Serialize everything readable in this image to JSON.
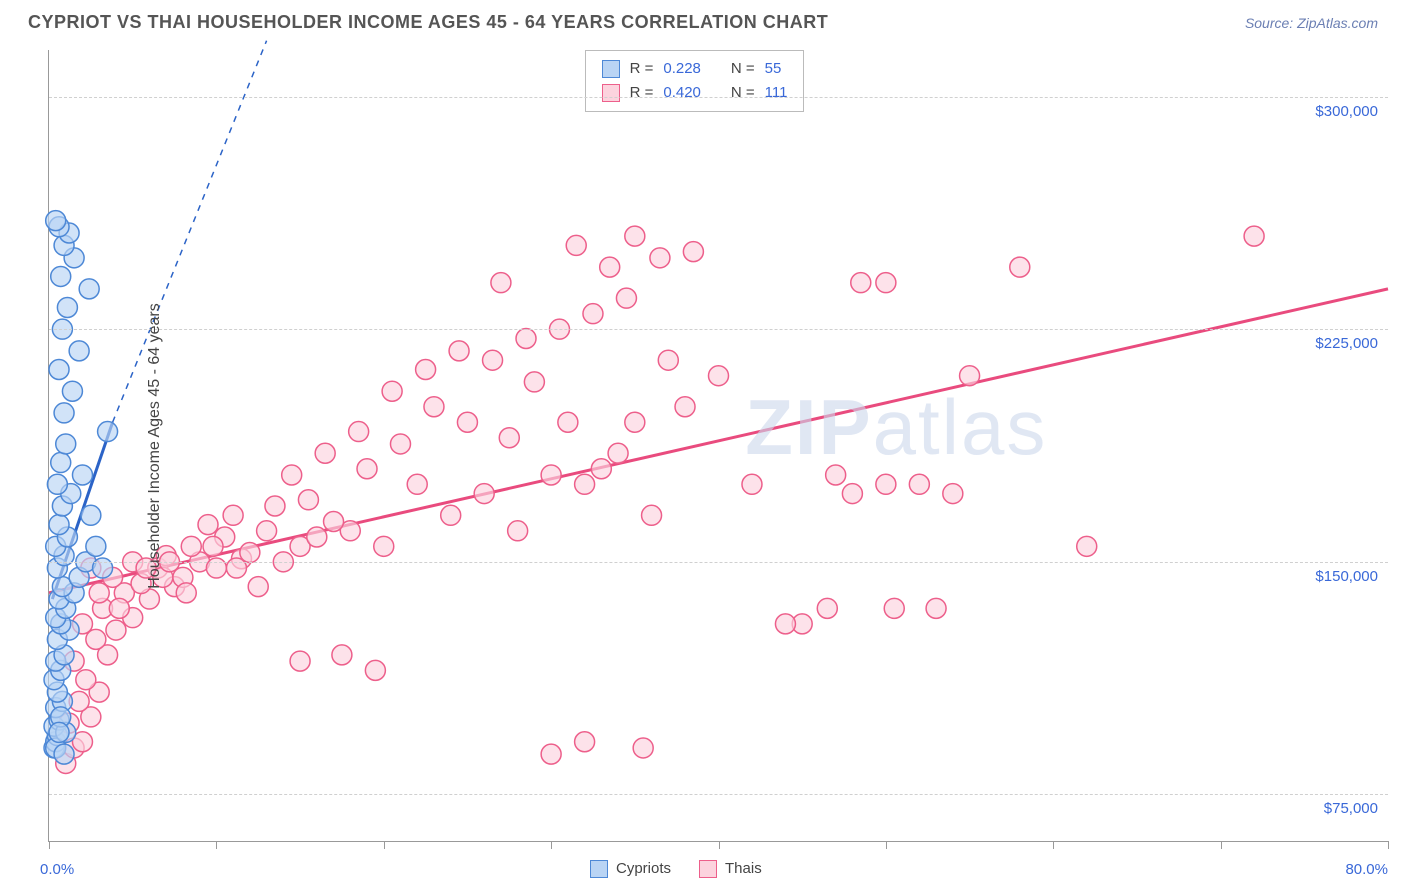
{
  "title": "CYPRIOT VS THAI HOUSEHOLDER INCOME AGES 45 - 64 YEARS CORRELATION CHART",
  "source": "Source: ZipAtlas.com",
  "ylabel": "Householder Income Ages 45 - 64 years",
  "watermark_a": "ZIP",
  "watermark_b": "atlas",
  "xaxis": {
    "min": 0,
    "max": 80,
    "label_min": "0.0%",
    "label_max": "80.0%",
    "tick_count": 9
  },
  "yaxis": {
    "min": 60000,
    "max": 315000,
    "ticks": [
      {
        "v": 75000,
        "label": "$75,000"
      },
      {
        "v": 150000,
        "label": "$150,000"
      },
      {
        "v": 225000,
        "label": "$225,000"
      },
      {
        "v": 300000,
        "label": "$300,000"
      }
    ]
  },
  "series": [
    {
      "id": "cypriots",
      "name": "Cypriots",
      "fill": "#b9d4f4",
      "stroke": "#4d88d6",
      "line_color": "#2b63c7",
      "r_label": "R =",
      "r_value": "0.228",
      "n_label": "N =",
      "n_value": "55",
      "trend": {
        "x1": 0.2,
        "y1": 138000,
        "x2": 3.8,
        "y2": 195000,
        "dash_to_x": 13,
        "dash_to_y": 318000
      },
      "points": [
        [
          0.3,
          90000
        ],
        [
          0.4,
          92000
        ],
        [
          0.5,
          94000
        ],
        [
          0.3,
          97000
        ],
        [
          0.6,
          99000
        ],
        [
          0.4,
          103000
        ],
        [
          0.8,
          105000
        ],
        [
          0.5,
          108000
        ],
        [
          0.3,
          112000
        ],
        [
          0.7,
          115000
        ],
        [
          0.4,
          118000
        ],
        [
          0.9,
          120000
        ],
        [
          0.5,
          125000
        ],
        [
          1.2,
          128000
        ],
        [
          0.7,
          130000
        ],
        [
          0.4,
          132000
        ],
        [
          1.0,
          135000
        ],
        [
          0.6,
          138000
        ],
        [
          1.5,
          140000
        ],
        [
          0.8,
          142000
        ],
        [
          1.8,
          145000
        ],
        [
          0.5,
          148000
        ],
        [
          2.2,
          150000
        ],
        [
          0.9,
          152000
        ],
        [
          0.4,
          155000
        ],
        [
          1.1,
          158000
        ],
        [
          0.6,
          162000
        ],
        [
          2.5,
          165000
        ],
        [
          0.8,
          168000
        ],
        [
          1.3,
          172000
        ],
        [
          0.5,
          175000
        ],
        [
          2.0,
          178000
        ],
        [
          0.7,
          182000
        ],
        [
          1.0,
          188000
        ],
        [
          3.5,
          192000
        ],
        [
          0.9,
          198000
        ],
        [
          1.4,
          205000
        ],
        [
          0.6,
          212000
        ],
        [
          1.8,
          218000
        ],
        [
          0.8,
          225000
        ],
        [
          1.1,
          232000
        ],
        [
          2.4,
          238000
        ],
        [
          0.7,
          242000
        ],
        [
          1.5,
          248000
        ],
        [
          0.9,
          252000
        ],
        [
          1.2,
          256000
        ],
        [
          0.6,
          258000
        ],
        [
          0.4,
          90000
        ],
        [
          1.0,
          95000
        ],
        [
          0.7,
          100000
        ],
        [
          2.8,
          155000
        ],
        [
          3.2,
          148000
        ],
        [
          0.6,
          95000
        ],
        [
          0.9,
          88000
        ],
        [
          0.4,
          260000
        ]
      ]
    },
    {
      "id": "thais",
      "name": "Thais",
      "fill": "#fcd3de",
      "stroke": "#ed5f8b",
      "line_color": "#e94b7e",
      "r_label": "R =",
      "r_value": "0.420",
      "n_label": "N =",
      "n_value": "111",
      "trend": {
        "x1": 0,
        "y1": 140000,
        "x2": 80,
        "y2": 238000
      },
      "points": [
        [
          1.0,
          85000
        ],
        [
          1.5,
          90000
        ],
        [
          2.0,
          92000
        ],
        [
          1.2,
          98000
        ],
        [
          2.5,
          100000
        ],
        [
          1.8,
          105000
        ],
        [
          3.0,
          108000
        ],
        [
          2.2,
          112000
        ],
        [
          1.5,
          118000
        ],
        [
          3.5,
          120000
        ],
        [
          2.8,
          125000
        ],
        [
          4.0,
          128000
        ],
        [
          2.0,
          130000
        ],
        [
          5.0,
          132000
        ],
        [
          3.2,
          135000
        ],
        [
          6.0,
          138000
        ],
        [
          4.5,
          140000
        ],
        [
          7.5,
          142000
        ],
        [
          5.5,
          143000
        ],
        [
          3.8,
          145000
        ],
        [
          8.0,
          145000
        ],
        [
          6.5,
          148000
        ],
        [
          9.0,
          150000
        ],
        [
          5.0,
          150000
        ],
        [
          10.0,
          148000
        ],
        [
          7.0,
          152000
        ],
        [
          11.5,
          151000
        ],
        [
          8.5,
          155000
        ],
        [
          12.0,
          153000
        ],
        [
          14.0,
          150000
        ],
        [
          10.5,
          158000
        ],
        [
          13.0,
          160000
        ],
        [
          15.0,
          155000
        ],
        [
          9.5,
          162000
        ],
        [
          16.0,
          158000
        ],
        [
          11.0,
          165000
        ],
        [
          18.0,
          160000
        ],
        [
          13.5,
          168000
        ],
        [
          20.0,
          155000
        ],
        [
          15.5,
          170000
        ],
        [
          17.0,
          163000
        ],
        [
          22.0,
          175000
        ],
        [
          14.5,
          178000
        ],
        [
          24.0,
          165000
        ],
        [
          19.0,
          180000
        ],
        [
          26.0,
          172000
        ],
        [
          16.5,
          185000
        ],
        [
          28.0,
          160000
        ],
        [
          21.0,
          188000
        ],
        [
          30.0,
          178000
        ],
        [
          18.5,
          192000
        ],
        [
          25.0,
          195000
        ],
        [
          32.0,
          175000
        ],
        [
          23.0,
          200000
        ],
        [
          27.5,
          190000
        ],
        [
          34.0,
          185000
        ],
        [
          20.5,
          205000
        ],
        [
          36.0,
          165000
        ],
        [
          29.0,
          208000
        ],
        [
          22.5,
          212000
        ],
        [
          31.0,
          195000
        ],
        [
          38.0,
          200000
        ],
        [
          26.5,
          215000
        ],
        [
          33.0,
          180000
        ],
        [
          24.5,
          218000
        ],
        [
          40.0,
          210000
        ],
        [
          28.5,
          222000
        ],
        [
          35.0,
          195000
        ],
        [
          42.0,
          175000
        ],
        [
          30.5,
          225000
        ],
        [
          37.0,
          215000
        ],
        [
          45.0,
          130000
        ],
        [
          32.5,
          230000
        ],
        [
          34.5,
          235000
        ],
        [
          48.0,
          172000
        ],
        [
          27.0,
          240000
        ],
        [
          50.0,
          240000
        ],
        [
          33.5,
          245000
        ],
        [
          52.0,
          175000
        ],
        [
          31.5,
          252000
        ],
        [
          55.0,
          210000
        ],
        [
          36.5,
          248000
        ],
        [
          30.0,
          88000
        ],
        [
          44.0,
          130000
        ],
        [
          32.0,
          92000
        ],
        [
          58.0,
          245000
        ],
        [
          47.0,
          178000
        ],
        [
          35.0,
          255000
        ],
        [
          50.5,
          135000
        ],
        [
          62.0,
          155000
        ],
        [
          38.5,
          250000
        ],
        [
          54.0,
          172000
        ],
        [
          48.5,
          240000
        ],
        [
          72.0,
          255000
        ],
        [
          53.0,
          135000
        ],
        [
          46.5,
          135000
        ],
        [
          12.5,
          142000
        ],
        [
          8.2,
          140000
        ],
        [
          6.8,
          145000
        ],
        [
          4.2,
          135000
        ],
        [
          3.0,
          140000
        ],
        [
          2.5,
          148000
        ],
        [
          5.8,
          148000
        ],
        [
          7.2,
          150000
        ],
        [
          9.8,
          155000
        ],
        [
          11.2,
          148000
        ],
        [
          35.5,
          90000
        ],
        [
          50.0,
          175000
        ],
        [
          19.5,
          115000
        ],
        [
          17.5,
          120000
        ],
        [
          15.0,
          118000
        ]
      ]
    }
  ],
  "marker_radius": 10,
  "marker_stroke_width": 1.5,
  "trend_line_width": 3,
  "background_color": "#ffffff"
}
